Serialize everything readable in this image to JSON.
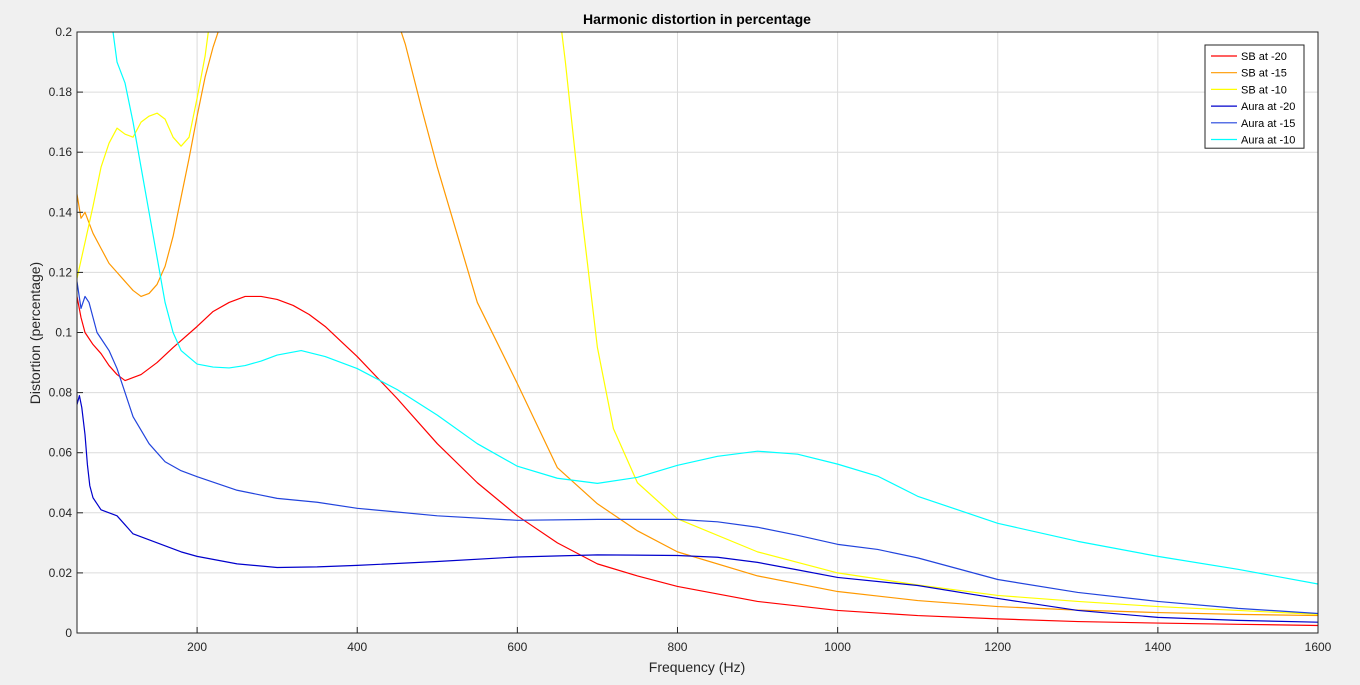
{
  "chart_data": {
    "type": "line",
    "title": "Harmonic distortion in percentage",
    "xlabel": "Frequency (Hz)",
    "ylabel": "Distortion (percentage)",
    "xlim": [
      50,
      1600
    ],
    "ylim": [
      0,
      0.2
    ],
    "xticks": [
      200,
      400,
      600,
      800,
      1000,
      1200,
      1400,
      1600
    ],
    "xtick_labels": [
      "200",
      "400",
      "600",
      "800",
      "1000",
      "1200",
      "1400",
      "1600"
    ],
    "yticks": [
      0,
      0.02,
      0.04,
      0.06,
      0.08,
      0.1,
      0.12,
      0.14,
      0.16,
      0.18,
      0.2
    ],
    "ytick_labels": [
      "0",
      "0.02",
      "0.04",
      "0.06",
      "0.08",
      "0.1",
      "0.12",
      "0.14",
      "0.16",
      "0.18",
      "0.2"
    ],
    "grid": true,
    "legend_position": "top-right",
    "background": "#ffffff",
    "series": [
      {
        "name": "SB at -20",
        "color": "#ff0000",
        "x": [
          50,
          55,
          60,
          70,
          80,
          90,
          100,
          110,
          120,
          130,
          140,
          150,
          170,
          200,
          220,
          240,
          260,
          280,
          300,
          320,
          340,
          360,
          380,
          400,
          450,
          500,
          550,
          600,
          650,
          700,
          750,
          800,
          900,
          1000,
          1100,
          1200,
          1300,
          1400,
          1500,
          1600
        ],
        "y": [
          0.112,
          0.105,
          0.1,
          0.096,
          0.093,
          0.089,
          0.086,
          0.084,
          0.085,
          0.086,
          0.088,
          0.09,
          0.095,
          0.102,
          0.107,
          0.11,
          0.112,
          0.112,
          0.111,
          0.109,
          0.106,
          0.102,
          0.097,
          0.092,
          0.078,
          0.063,
          0.05,
          0.039,
          0.03,
          0.023,
          0.019,
          0.0155,
          0.0105,
          0.0075,
          0.0058,
          0.0047,
          0.0038,
          0.0033,
          0.0029,
          0.0025
        ]
      },
      {
        "name": "SB at -15",
        "color": "#ff9900",
        "x": [
          50,
          55,
          60,
          70,
          80,
          90,
          100,
          110,
          120,
          130,
          140,
          150,
          160,
          170,
          180,
          190,
          200,
          210,
          220,
          230,
          240,
          440,
          460,
          480,
          500,
          550,
          600,
          650,
          700,
          750,
          800,
          900,
          1000,
          1100,
          1200,
          1300,
          1400,
          1500,
          1600
        ],
        "y": [
          0.146,
          0.138,
          0.14,
          0.133,
          0.128,
          0.123,
          0.12,
          0.117,
          0.114,
          0.112,
          0.113,
          0.116,
          0.122,
          0.132,
          0.145,
          0.158,
          0.172,
          0.185,
          0.195,
          0.203,
          0.212,
          0.212,
          0.196,
          0.175,
          0.155,
          0.11,
          0.083,
          0.055,
          0.043,
          0.034,
          0.027,
          0.019,
          0.0138,
          0.0108,
          0.0088,
          0.0076,
          0.0068,
          0.0062,
          0.0058
        ]
      },
      {
        "name": "SB at -10",
        "color": "#ffff00",
        "x": [
          50,
          55,
          60,
          70,
          80,
          90,
          100,
          110,
          120,
          130,
          140,
          150,
          160,
          170,
          180,
          190,
          200,
          210,
          220,
          650,
          660,
          680,
          700,
          720,
          750,
          800,
          900,
          1000,
          1100,
          1200,
          1300,
          1400,
          1500,
          1600
        ],
        "y": [
          0.118,
          0.124,
          0.13,
          0.142,
          0.155,
          0.163,
          0.168,
          0.166,
          0.165,
          0.17,
          0.172,
          0.173,
          0.171,
          0.165,
          0.162,
          0.165,
          0.178,
          0.192,
          0.212,
          0.212,
          0.19,
          0.14,
          0.095,
          0.068,
          0.05,
          0.038,
          0.027,
          0.02,
          0.016,
          0.0125,
          0.0105,
          0.0088,
          0.0075,
          0.0062
        ]
      },
      {
        "name": "Aura at -20",
        "color": "#0000cc",
        "x": [
          50,
          53,
          56,
          60,
          63,
          66,
          70,
          75,
          80,
          90,
          100,
          110,
          120,
          140,
          160,
          180,
          200,
          250,
          300,
          350,
          400,
          500,
          600,
          700,
          800,
          850,
          900,
          950,
          1000,
          1100,
          1200,
          1300,
          1400,
          1500,
          1600
        ],
        "y": [
          0.076,
          0.079,
          0.075,
          0.066,
          0.056,
          0.049,
          0.045,
          0.043,
          0.041,
          0.04,
          0.039,
          0.036,
          0.033,
          0.031,
          0.029,
          0.027,
          0.0255,
          0.023,
          0.0218,
          0.022,
          0.0225,
          0.0238,
          0.0253,
          0.026,
          0.0258,
          0.0252,
          0.0235,
          0.021,
          0.0185,
          0.0158,
          0.0115,
          0.0075,
          0.0052,
          0.0042,
          0.0036
        ]
      },
      {
        "name": "Aura at -15",
        "color": "#2244dd",
        "x": [
          50,
          55,
          60,
          65,
          70,
          75,
          80,
          90,
          100,
          110,
          120,
          140,
          160,
          180,
          200,
          250,
          300,
          350,
          400,
          500,
          600,
          700,
          800,
          850,
          900,
          950,
          1000,
          1050,
          1100,
          1200,
          1300,
          1400,
          1500,
          1600
        ],
        "y": [
          0.117,
          0.108,
          0.112,
          0.11,
          0.105,
          0.1,
          0.098,
          0.094,
          0.088,
          0.08,
          0.072,
          0.063,
          0.057,
          0.054,
          0.052,
          0.0475,
          0.0448,
          0.0435,
          0.0415,
          0.039,
          0.0375,
          0.0378,
          0.0378,
          0.037,
          0.0352,
          0.0325,
          0.0295,
          0.0278,
          0.025,
          0.0178,
          0.0135,
          0.0105,
          0.0082,
          0.0065
        ]
      },
      {
        "name": "Aura at -10",
        "color": "#00ffff",
        "x": [
          95,
          100,
          110,
          120,
          130,
          140,
          150,
          160,
          170,
          180,
          200,
          220,
          240,
          260,
          280,
          300,
          330,
          360,
          400,
          450,
          500,
          550,
          600,
          650,
          700,
          750,
          800,
          850,
          900,
          950,
          1000,
          1050,
          1100,
          1200,
          1300,
          1400,
          1500,
          1600
        ],
        "y": [
          0.2,
          0.19,
          0.183,
          0.17,
          0.155,
          0.14,
          0.125,
          0.11,
          0.1,
          0.094,
          0.0895,
          0.0885,
          0.0882,
          0.089,
          0.0905,
          0.0925,
          0.094,
          0.092,
          0.088,
          0.081,
          0.0725,
          0.063,
          0.0555,
          0.0515,
          0.0498,
          0.0518,
          0.0558,
          0.0588,
          0.0605,
          0.0595,
          0.0562,
          0.0522,
          0.0455,
          0.0365,
          0.0305,
          0.0255,
          0.0212,
          0.0163
        ]
      }
    ]
  }
}
